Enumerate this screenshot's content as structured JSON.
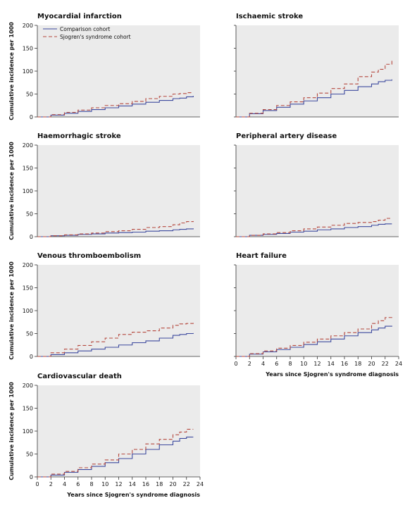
{
  "legend": {
    "comparison": "Comparison cohort",
    "sjogren": "Sjogren's syndrome cohort"
  },
  "colors": {
    "comparison": "#3d4a9e",
    "sjogren": "#b5483e",
    "panel_bg": "#ebebeb"
  },
  "ylabel": "Cumulative incidence per 1000",
  "xlabel": "Years since Sjogren's syndrome diagnosis",
  "x_ticks": [
    0,
    2,
    4,
    6,
    8,
    10,
    12,
    14,
    16,
    18,
    20,
    22,
    24
  ],
  "y_ticks": [
    0,
    50,
    100,
    150,
    200
  ],
  "chart_data": [
    {
      "type": "line",
      "title": "Myocardial infarction",
      "xlim": [
        0,
        24
      ],
      "ylim": [
        0,
        200
      ],
      "x": [
        0,
        2,
        4,
        6,
        8,
        10,
        12,
        14,
        16,
        18,
        20,
        21,
        22,
        23
      ],
      "series": [
        {
          "name": "Comparison cohort",
          "values": [
            0,
            4,
            8,
            12,
            16,
            20,
            24,
            28,
            32,
            36,
            40,
            41,
            44,
            46
          ]
        },
        {
          "name": "Sjogren's syndrome cohort",
          "values": [
            0,
            5,
            10,
            15,
            20,
            25,
            29,
            34,
            40,
            45,
            50,
            51,
            53,
            53
          ]
        }
      ]
    },
    {
      "type": "line",
      "title": "Ischaemic stroke",
      "xlim": [
        0,
        24
      ],
      "ylim": [
        0,
        200
      ],
      "x": [
        0,
        2,
        4,
        6,
        8,
        10,
        12,
        14,
        16,
        18,
        20,
        21,
        22,
        23
      ],
      "series": [
        {
          "name": "Comparison cohort",
          "values": [
            0,
            7,
            14,
            21,
            28,
            35,
            42,
            50,
            58,
            66,
            72,
            77,
            80,
            82
          ]
        },
        {
          "name": "Sjogren's syndrome cohort",
          "values": [
            0,
            8,
            16,
            25,
            33,
            42,
            52,
            62,
            72,
            88,
            98,
            104,
            115,
            124
          ]
        }
      ]
    },
    {
      "type": "line",
      "title": "Haemorrhagic stroke",
      "xlim": [
        0,
        24
      ],
      "ylim": [
        0,
        200
      ],
      "x": [
        0,
        2,
        4,
        6,
        8,
        10,
        12,
        14,
        16,
        18,
        20,
        21,
        22,
        23
      ],
      "series": [
        {
          "name": "Comparison cohort",
          "values": [
            0,
            2,
            3,
            5,
            6,
            8,
            9,
            10,
            12,
            13,
            15,
            16,
            17,
            18
          ]
        },
        {
          "name": "Sjogren's syndrome cohort",
          "values": [
            0,
            2,
            4,
            6,
            8,
            11,
            13,
            16,
            20,
            22,
            26,
            30,
            33,
            34
          ]
        }
      ]
    },
    {
      "type": "line",
      "title": "Peripheral artery disease",
      "xlim": [
        0,
        24
      ],
      "ylim": [
        0,
        200
      ],
      "x": [
        0,
        2,
        4,
        6,
        8,
        10,
        12,
        14,
        16,
        18,
        20,
        21,
        22,
        23
      ],
      "series": [
        {
          "name": "Comparison cohort",
          "values": [
            0,
            3,
            5,
            7,
            10,
            12,
            15,
            17,
            20,
            22,
            25,
            27,
            28,
            28
          ]
        },
        {
          "name": "Sjogren's syndrome cohort",
          "values": [
            0,
            3,
            6,
            9,
            13,
            17,
            21,
            25,
            29,
            31,
            33,
            36,
            40,
            41
          ]
        }
      ]
    },
    {
      "type": "line",
      "title": "Venous thromboembolism",
      "xlim": [
        0,
        24
      ],
      "ylim": [
        0,
        200
      ],
      "x": [
        0,
        2,
        4,
        6,
        8,
        10,
        12,
        14,
        16,
        18,
        20,
        21,
        22,
        23
      ],
      "series": [
        {
          "name": "Comparison cohort",
          "values": [
            0,
            4,
            8,
            12,
            16,
            20,
            25,
            30,
            34,
            40,
            46,
            48,
            50,
            51
          ]
        },
        {
          "name": "Sjogren's syndrome cohort",
          "values": [
            0,
            8,
            16,
            24,
            32,
            40,
            48,
            53,
            56,
            62,
            68,
            71,
            72,
            73
          ]
        }
      ]
    },
    {
      "type": "line",
      "title": "Heart failure",
      "xlim": [
        0,
        24
      ],
      "ylim": [
        0,
        200
      ],
      "x": [
        0,
        2,
        4,
        6,
        8,
        10,
        12,
        14,
        16,
        18,
        20,
        21,
        22,
        23
      ],
      "series": [
        {
          "name": "Comparison cohort",
          "values": [
            0,
            5,
            10,
            15,
            20,
            26,
            32,
            38,
            45,
            52,
            58,
            62,
            66,
            67
          ]
        },
        {
          "name": "Sjogren's syndrome cohort",
          "values": [
            0,
            6,
            12,
            18,
            24,
            31,
            38,
            45,
            52,
            60,
            72,
            78,
            85,
            90
          ]
        }
      ]
    },
    {
      "type": "line",
      "title": "Cardiovascular death",
      "xlim": [
        0,
        24
      ],
      "ylim": [
        0,
        200
      ],
      "x": [
        0,
        2,
        4,
        6,
        8,
        10,
        12,
        14,
        16,
        18,
        20,
        21,
        22,
        23
      ],
      "series": [
        {
          "name": "Comparison cohort",
          "values": [
            0,
            4,
            10,
            16,
            23,
            31,
            40,
            50,
            60,
            70,
            78,
            84,
            87,
            87
          ]
        },
        {
          "name": "Sjogren's syndrome cohort",
          "values": [
            0,
            6,
            12,
            20,
            28,
            37,
            50,
            60,
            72,
            82,
            92,
            98,
            104,
            104
          ]
        }
      ]
    }
  ]
}
